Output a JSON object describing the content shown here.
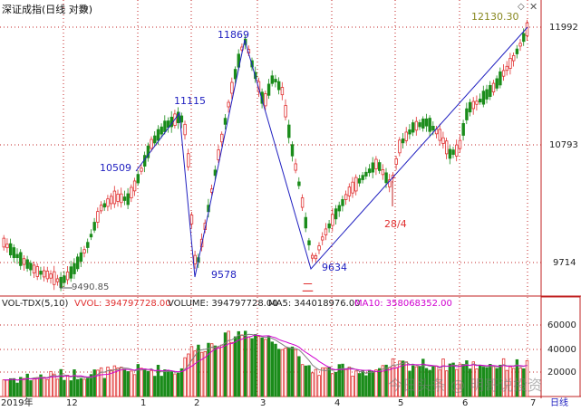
{
  "window": {
    "title": "深证成指(日线 对数)"
  },
  "colors": {
    "up": "#e03030",
    "down": "#1a8c1a",
    "wave": "#2020c0",
    "ma5": "#808080",
    "ma10": "#d000d0",
    "frame": "#c02020"
  },
  "icons": {
    "add": "plus-circle-icon",
    "diamond": "diamond-icon",
    "close": "close-icon"
  },
  "price_axis": {
    "ticks": [
      "11992",
      "10793",
      "9714"
    ]
  },
  "volume_axis": {
    "ticks": [
      "60000",
      "40000",
      "20000"
    ]
  },
  "wave_labels": [
    {
      "text": "10509",
      "value": 10509
    },
    {
      "text": "11115",
      "value": 11115
    },
    {
      "text": "11869",
      "value": 11869
    },
    {
      "text": "9578",
      "value": 9578
    },
    {
      "text": "9634",
      "value": 9634
    }
  ],
  "annotations": {
    "low_marker": "9490.85",
    "high_marker": "12130.30",
    "note_er": "二",
    "date_note": "28/4"
  },
  "volume_header": {
    "name": "VOL-TDX(5,10)",
    "vvol": "VVOL: 394797728.00",
    "volume": "VOLUME: 394797728.00",
    "ma5": "MA5: 344018976.00",
    "ma10": "MA10: 358068352.00"
  },
  "time_axis": {
    "labels": [
      "2019年",
      "12",
      "1",
      "2",
      "3",
      "4",
      "5",
      "6",
      "7"
    ],
    "period": "日线"
  },
  "watermark": "今日头条 @ 明哥说投资",
  "chart_data": {
    "type": "candlestick",
    "title": "深证成指(日线 对数)",
    "price_ticks": [
      11992,
      10793,
      9714
    ],
    "volume_ticks": [
      60000,
      40000,
      20000
    ],
    "wave_points": [
      {
        "label": "10509",
        "value": 10509
      },
      {
        "label": "11115",
        "value": 11115
      },
      {
        "label": "9578",
        "value": 9578
      },
      {
        "label": "11869",
        "value": 11869
      },
      {
        "label": "9634",
        "value": 9634
      },
      {
        "label": "12130.30",
        "value": 12130.3
      }
    ],
    "low": 9490.85,
    "high": 12130.3,
    "volume_series": [
      {
        "name": "VOLUME",
        "last": 394797728.0
      },
      {
        "name": "MA5",
        "last": 344018976.0
      },
      {
        "name": "MA10",
        "last": 358068352.0
      }
    ]
  }
}
